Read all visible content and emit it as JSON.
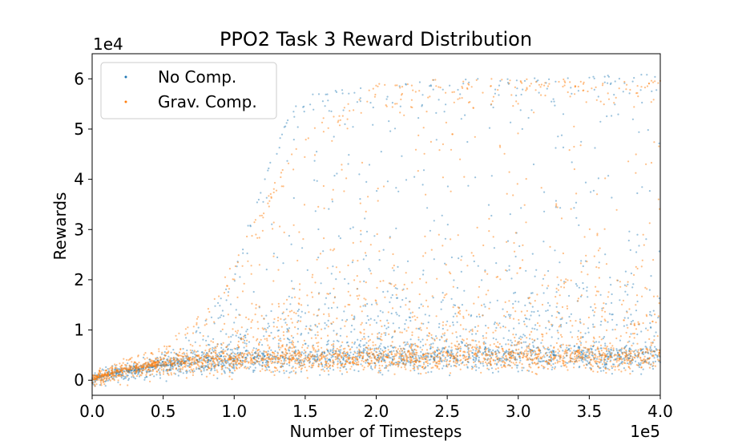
{
  "chart_data": {
    "type": "scatter",
    "title": "PPO2 Task 3 Reward Distribution",
    "xlabel": "Number of Timesteps",
    "ylabel": "Rewards",
    "x_offset_label": "1e5",
    "y_offset_label": "1e4",
    "x_multiplier": 100000,
    "y_multiplier": 10000,
    "xlim": [
      0,
      400000
    ],
    "ylim": [
      -3000,
      65000
    ],
    "x_ticks": [
      0,
      50000,
      100000,
      150000,
      200000,
      250000,
      300000,
      350000,
      400000
    ],
    "x_tick_labels": [
      "0.0",
      "0.5",
      "1.0",
      "1.5",
      "2.0",
      "2.5",
      "3.0",
      "3.5",
      "4.0"
    ],
    "y_ticks": [
      0,
      10000,
      20000,
      30000,
      40000,
      50000,
      60000
    ],
    "y_tick_labels": [
      "0",
      "1",
      "2",
      "3",
      "4",
      "5",
      "6"
    ],
    "grid": false,
    "legend_position": "top-left",
    "series": [
      {
        "name": "No Comp.",
        "color": "#1f77b4",
        "trend": {
          "x": [
            0,
            20000,
            50000,
            100000,
            150000,
            200000,
            250000,
            300000,
            350000,
            400000
          ],
          "baseline": [
            0,
            1500,
            2800,
            3800,
            4300,
            4500,
            4600,
            4700,
            4700,
            4700
          ]
        },
        "upper_envelope": {
          "x": [
            0,
            50000,
            80000,
            100000,
            120000,
            140000,
            160000,
            200000,
            250000,
            300000,
            350000,
            400000
          ],
          "y": [
            1000,
            5000,
            12000,
            22000,
            40000,
            54000,
            58000,
            59000,
            60000,
            60000,
            61000,
            61000
          ]
        }
      },
      {
        "name": "Grav. Comp.",
        "color": "#ff7f0e",
        "trend": {
          "x": [
            0,
            20000,
            50000,
            100000,
            150000,
            200000,
            250000,
            300000,
            350000,
            400000
          ],
          "baseline": [
            0,
            1800,
            3000,
            3800,
            4200,
            4400,
            4500,
            4500,
            4500,
            4500
          ]
        },
        "upper_envelope": {
          "x": [
            0,
            50000,
            80000,
            100000,
            120000,
            140000,
            160000,
            200000,
            250000,
            300000,
            350000,
            400000
          ],
          "y": [
            1500,
            7000,
            14000,
            24000,
            35000,
            45000,
            52000,
            59000,
            60000,
            60000,
            60000,
            60000
          ]
        }
      }
    ]
  }
}
